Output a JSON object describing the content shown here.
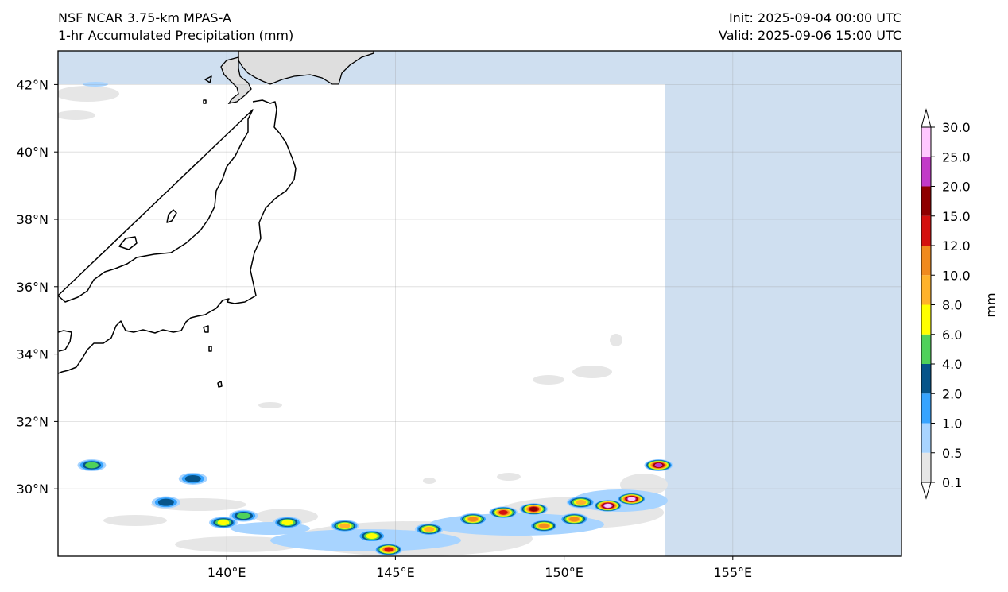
{
  "header": {
    "model": "NSF NCAR 3.75-km MPAS-A",
    "field": "1-hr Accumulated Precipitation (mm)",
    "init": "Init: 2025-09-04 00:00 UTC",
    "valid": "Valid: 2025-09-06 15:00 UTC"
  },
  "map": {
    "lon_range": [
      135,
      160
    ],
    "lat_range": [
      28,
      43
    ],
    "lon_ticks": [
      {
        "value": 140,
        "label": "140°E"
      },
      {
        "value": 145,
        "label": "145°E"
      },
      {
        "value": 150,
        "label": "150°E"
      },
      {
        "value": 155,
        "label": "155°E"
      }
    ],
    "lat_ticks": [
      {
        "value": 30,
        "label": "30°N"
      },
      {
        "value": 32,
        "label": "32°N"
      },
      {
        "value": 34,
        "label": "34°N"
      },
      {
        "value": 36,
        "label": "36°N"
      },
      {
        "value": 38,
        "label": "38°N"
      },
      {
        "value": 40,
        "label": "40°N"
      },
      {
        "value": 42,
        "label": "42°N"
      }
    ],
    "domain_edge": {
      "east_lon": 153,
      "north_lat": 42
    },
    "outside_color": "#cfdff0",
    "land_outside_color": "#dedede"
  },
  "colorbar": {
    "unit": "mm",
    "levels": [
      "0.1",
      "0.5",
      "1.0",
      "2.0",
      "4.0",
      "6.0",
      "8.0",
      "10.0",
      "12.0",
      "15.0",
      "20.0",
      "25.0",
      "30.0"
    ],
    "colors": [
      "#e6e6e6",
      "#a8d4ff",
      "#37a4ff",
      "#06548a",
      "#4fd15a",
      "#ffff00",
      "#ffb22a",
      "#f08a1e",
      "#d4100e",
      "#8e0000",
      "#c23ac8",
      "#ffc8ff"
    ],
    "extend_low_color": "#ffffff",
    "extend_high_color": "#ffffff"
  },
  "precip_cells": [
    {
      "lon": 136.0,
      "lat": 30.7,
      "max_mm": 4.0
    },
    {
      "lon": 138.2,
      "lat": 29.6,
      "max_mm": 2.5
    },
    {
      "lon": 139.0,
      "lat": 30.3,
      "max_mm": 2.5
    },
    {
      "lon": 139.9,
      "lat": 29.0,
      "max_mm": 6.0
    },
    {
      "lon": 140.5,
      "lat": 29.2,
      "max_mm": 4.0
    },
    {
      "lon": 141.8,
      "lat": 29.0,
      "max_mm": 6.0
    },
    {
      "lon": 143.5,
      "lat": 28.9,
      "max_mm": 8.0
    },
    {
      "lon": 144.3,
      "lat": 28.6,
      "max_mm": 6.0
    },
    {
      "lon": 144.8,
      "lat": 28.2,
      "max_mm": 12.0
    },
    {
      "lon": 146.0,
      "lat": 28.8,
      "max_mm": 8.0
    },
    {
      "lon": 147.3,
      "lat": 29.1,
      "max_mm": 10.0
    },
    {
      "lon": 148.2,
      "lat": 29.3,
      "max_mm": 12.0
    },
    {
      "lon": 149.1,
      "lat": 29.4,
      "max_mm": 15.0
    },
    {
      "lon": 149.4,
      "lat": 28.9,
      "max_mm": 10.0
    },
    {
      "lon": 150.3,
      "lat": 29.1,
      "max_mm": 10.0
    },
    {
      "lon": 150.5,
      "lat": 29.6,
      "max_mm": 8.0
    },
    {
      "lon": 151.3,
      "lat": 29.5,
      "max_mm": 25.0
    },
    {
      "lon": 152.0,
      "lat": 29.7,
      "max_mm": 30.0
    },
    {
      "lon": 152.8,
      "lat": 30.7,
      "max_mm": 20.0
    }
  ]
}
